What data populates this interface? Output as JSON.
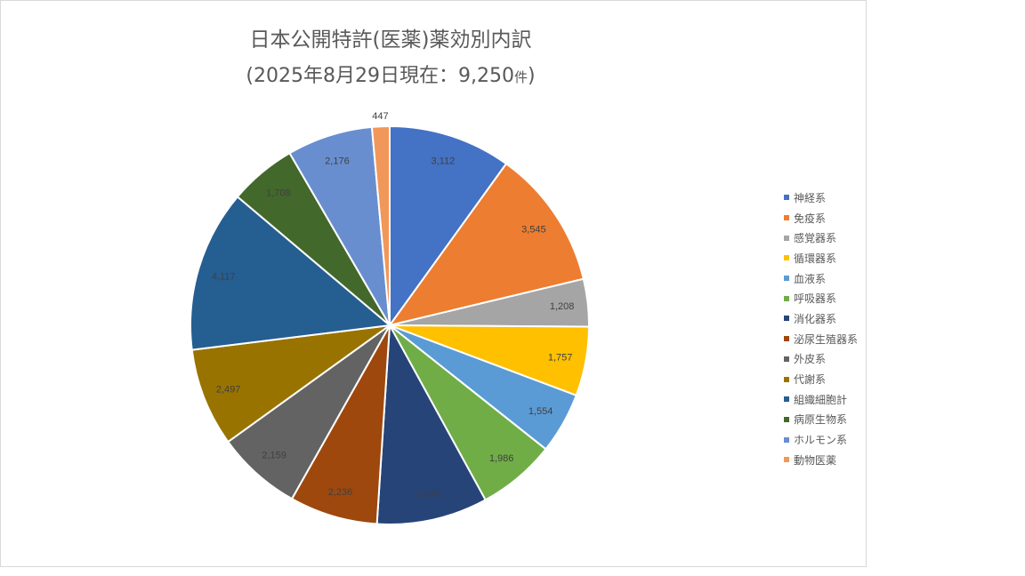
{
  "chart_data": {
    "type": "pie",
    "title": "日本公開特許(医薬)薬効別内訳",
    "subtitle": {
      "main": "(2025年8月29日現在：9,250",
      "unit": "件",
      "close": ")"
    },
    "legend_position": "right",
    "start_angle": "12 o'clock, clockwise",
    "slices": [
      {
        "label": "神経系",
        "value": 3112,
        "display": "3,112",
        "color": "#4472C4"
      },
      {
        "label": "免疫系",
        "value": 3545,
        "display": "3,545",
        "color": "#ED7D31"
      },
      {
        "label": "感覚器系",
        "value": 1208,
        "display": "1,208",
        "color": "#A5A5A5"
      },
      {
        "label": "循環器系",
        "value": 1757,
        "display": "1,757",
        "color": "#FFC000"
      },
      {
        "label": "血液系",
        "value": 1554,
        "display": "1,554",
        "color": "#5B9BD5"
      },
      {
        "label": "呼吸器系",
        "value": 1986,
        "display": "1,986",
        "color": "#70AD47"
      },
      {
        "label": "消化器系",
        "value": 2820,
        "display": "2,820",
        "color": "#264478"
      },
      {
        "label": "泌尿生殖器系",
        "value": 2236,
        "display": "2,236",
        "color": "#9E480E"
      },
      {
        "label": "外皮系",
        "value": 2159,
        "display": "2,159",
        "color": "#636363"
      },
      {
        "label": "代謝系",
        "value": 2497,
        "display": "2,497",
        "color": "#997300"
      },
      {
        "label": "組織細胞計",
        "value": 4117,
        "display": "4,117",
        "color": "#255E91"
      },
      {
        "label": "病原生物系",
        "value": 1708,
        "display": "1,708",
        "color": "#43682B"
      },
      {
        "label": "ホルモン系",
        "value": 2176,
        "display": "2,176",
        "color": "#698ED0"
      },
      {
        "label": "動物医薬",
        "value": 447,
        "display": "447",
        "color": "#F1975A"
      }
    ]
  }
}
